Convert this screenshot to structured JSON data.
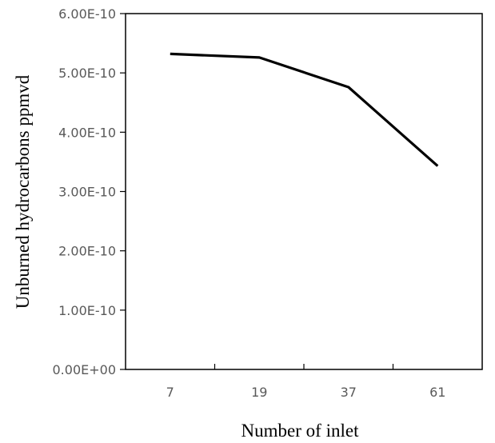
{
  "chart_data": {
    "type": "line",
    "title": "",
    "xlabel": "Number of inlet",
    "ylabel": "Unburned hydrocarbons ppmvd",
    "categories": [
      "7",
      "19",
      "37",
      "61"
    ],
    "series": [
      {
        "values": [
          5.32e-10,
          5.26e-10,
          4.76e-10,
          3.43e-10
        ]
      }
    ],
    "ylim": [
      0,
      6e-10
    ],
    "yticks": [
      0,
      1e-10,
      2e-10,
      3e-10,
      4e-10,
      5e-10,
      6e-10
    ],
    "ytick_labels": [
      "0.00E+00",
      "1.00E-10",
      "2.00E-10",
      "3.00E-10",
      "4.00E-10",
      "5.00E-10",
      "6.00E-10"
    ],
    "grid": false,
    "legend": "none",
    "line_color": "#000000"
  }
}
